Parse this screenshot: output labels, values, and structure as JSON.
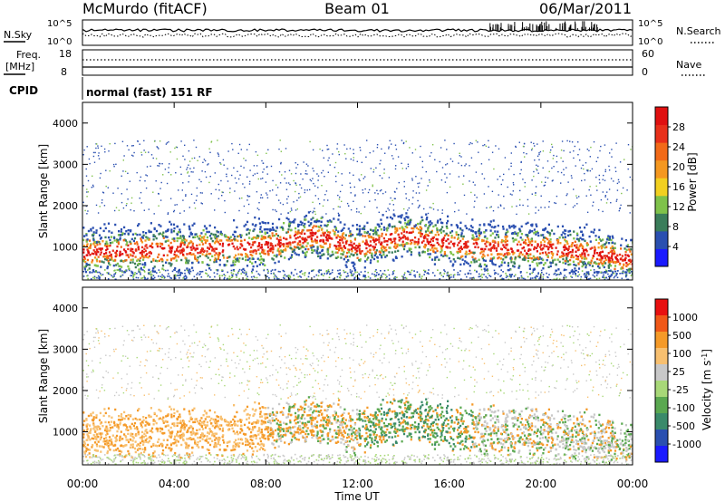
{
  "header": {
    "station": "McMurdo (fitACF)",
    "beam": "Beam 01",
    "date": "06/Mar/2011"
  },
  "noise_panel": {
    "left_label": "N.Sky",
    "right_label": "N.Search",
    "left_top": "10^5",
    "left_bottom": "10^0",
    "right_top": "10^5",
    "right_bottom": "10^0"
  },
  "freq_panel": {
    "left_label_1": "Freq.",
    "left_label_2": "[MHz]",
    "left_top": "18",
    "left_bottom": "8",
    "right_label": "Nave",
    "right_top": "60",
    "right_bottom": "0"
  },
  "cpid_panel": {
    "label": "CPID",
    "text": "normal (fast) 151 RF"
  },
  "x_axis": {
    "title": "Time UT",
    "ticks": [
      "00:00",
      "04:00",
      "08:00",
      "12:00",
      "16:00",
      "20:00",
      "00:00"
    ]
  },
  "colors": {
    "power_scale": [
      "#1a1aff",
      "#2a4fb0",
      "#3a7d5a",
      "#7fc24a",
      "#f2d020",
      "#f59820",
      "#f26a18",
      "#e8301a",
      "#e01010"
    ],
    "velocity_scale": [
      "#e81010",
      "#f05818",
      "#f59a28",
      "#f8c070",
      "#c8c8c8",
      "#a8d878",
      "#5aa850",
      "#3a8a6a",
      "#2a4fb0",
      "#1a1aff"
    ]
  },
  "chart_data": [
    {
      "type": "heatmap",
      "title": "",
      "xlabel": "Time UT",
      "ylabel": "Slant Range [km]",
      "xlim": [
        "00:00",
        "24:00"
      ],
      "ylim": [
        200,
        4500
      ],
      "yticks": [
        "1000",
        "2000",
        "3000",
        "4000"
      ],
      "colorbar_label": "Power [dB]",
      "colorbar_ticks": [
        "4",
        "8",
        "12",
        "16",
        "20",
        "24",
        "28"
      ],
      "colorbar_range": [
        0,
        30
      ],
      "main_band_center_km": [
        [
          0,
          900
        ],
        [
          4,
          950
        ],
        [
          8,
          1050
        ],
        [
          10,
          1300
        ],
        [
          12,
          1000
        ],
        [
          14,
          1300
        ],
        [
          16,
          1100
        ],
        [
          18,
          1000
        ],
        [
          20,
          1000
        ],
        [
          22,
          900
        ],
        [
          24,
          700
        ]
      ]
    },
    {
      "type": "heatmap",
      "title": "",
      "xlabel": "Time UT",
      "ylabel": "Slant Range [km]",
      "xlim": [
        "00:00",
        "24:00"
      ],
      "ylim": [
        200,
        4500
      ],
      "yticks": [
        "1000",
        "2000",
        "3000",
        "4000"
      ],
      "colorbar_label": "Velocity [m s^-1]",
      "colorbar_ticks": [
        "1000",
        "500",
        "100",
        "25",
        "-25",
        "-100",
        "-500",
        "-1000"
      ],
      "colorbar_range": [
        -1000,
        1000
      ]
    }
  ]
}
